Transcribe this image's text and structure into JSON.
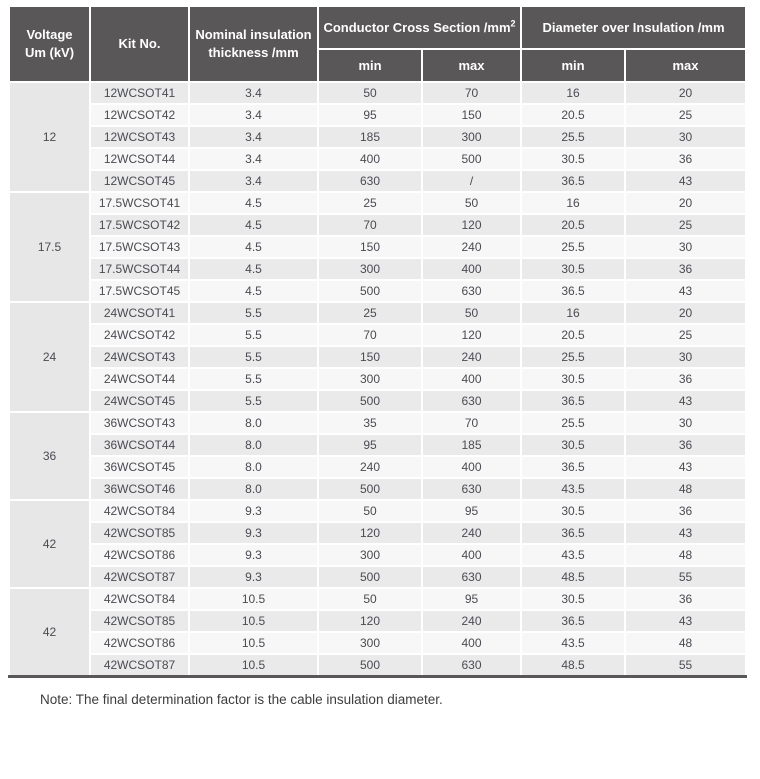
{
  "colors": {
    "header_bg": "#595757",
    "row_odd": "#eaeaeb",
    "row_even": "#f7f7f7",
    "voltage_bg": "#e7e7e8",
    "body_text": "#4a4b52",
    "note_text": "#3d3d3d"
  },
  "table": {
    "header": {
      "voltage_line1": "Voltage",
      "voltage_line2": "Um (kV)",
      "kit_no": "Kit No.",
      "nominal_line1": "Nominal insulation",
      "nominal_line2": "thickness /mm",
      "conductor_cross_section_label": "Conductor Cross Section /mm",
      "conductor_cross_section_sup": "2",
      "diameter_label": "Diameter over Insulation /mm",
      "min": "min",
      "max": "max"
    },
    "groups": [
      {
        "voltage": "12",
        "rows": [
          [
            "12WCSOT41",
            "3.4",
            "50",
            "70",
            "16",
            "20"
          ],
          [
            "12WCSOT42",
            "3.4",
            "95",
            "150",
            "20.5",
            "25"
          ],
          [
            "12WCSOT43",
            "3.4",
            "185",
            "300",
            "25.5",
            "30"
          ],
          [
            "12WCSOT44",
            "3.4",
            "400",
            "500",
            "30.5",
            "36"
          ],
          [
            "12WCSOT45",
            "3.4",
            "630",
            "/",
            "36.5",
            "43"
          ]
        ]
      },
      {
        "voltage": "17.5",
        "rows": [
          [
            "17.5WCSOT41",
            "4.5",
            "25",
            "50",
            "16",
            "20"
          ],
          [
            "17.5WCSOT42",
            "4.5",
            "70",
            "120",
            "20.5",
            "25"
          ],
          [
            "17.5WCSOT43",
            "4.5",
            "150",
            "240",
            "25.5",
            "30"
          ],
          [
            "17.5WCSOT44",
            "4.5",
            "300",
            "400",
            "30.5",
            "36"
          ],
          [
            "17.5WCSOT45",
            "4.5",
            "500",
            "630",
            "36.5",
            "43"
          ]
        ]
      },
      {
        "voltage": "24",
        "rows": [
          [
            "24WCSOT41",
            "5.5",
            "25",
            "50",
            "16",
            "20"
          ],
          [
            "24WCSOT42",
            "5.5",
            "70",
            "120",
            "20.5",
            "25"
          ],
          [
            "24WCSOT43",
            "5.5",
            "150",
            "240",
            "25.5",
            "30"
          ],
          [
            "24WCSOT44",
            "5.5",
            "300",
            "400",
            "30.5",
            "36"
          ],
          [
            "24WCSOT45",
            "5.5",
            "500",
            "630",
            "36.5",
            "43"
          ]
        ]
      },
      {
        "voltage": "36",
        "rows": [
          [
            "36WCSOT43",
            "8.0",
            "35",
            "70",
            "25.5",
            "30"
          ],
          [
            "36WCSOT44",
            "8.0",
            "95",
            "185",
            "30.5",
            "36"
          ],
          [
            "36WCSOT45",
            "8.0",
            "240",
            "400",
            "36.5",
            "43"
          ],
          [
            "36WCSOT46",
            "8.0",
            "500",
            "630",
            "43.5",
            "48"
          ]
        ]
      },
      {
        "voltage": "42",
        "rows": [
          [
            "42WCSOT84",
            "9.3",
            "50",
            "95",
            "30.5",
            "36"
          ],
          [
            "42WCSOT85",
            "9.3",
            "120",
            "240",
            "36.5",
            "43"
          ],
          [
            "42WCSOT86",
            "9.3",
            "300",
            "400",
            "43.5",
            "48"
          ],
          [
            "42WCSOT87",
            "9.3",
            "500",
            "630",
            "48.5",
            "55"
          ]
        ]
      },
      {
        "voltage": "42",
        "rows": [
          [
            "42WCSOT84",
            "10.5",
            "50",
            "95",
            "30.5",
            "36"
          ],
          [
            "42WCSOT85",
            "10.5",
            "120",
            "240",
            "36.5",
            "43"
          ],
          [
            "42WCSOT86",
            "10.5",
            "300",
            "400",
            "43.5",
            "48"
          ],
          [
            "42WCSOT87",
            "10.5",
            "500",
            "630",
            "48.5",
            "55"
          ]
        ]
      }
    ]
  },
  "note": "Note: The final determination factor is the cable insulation diameter."
}
